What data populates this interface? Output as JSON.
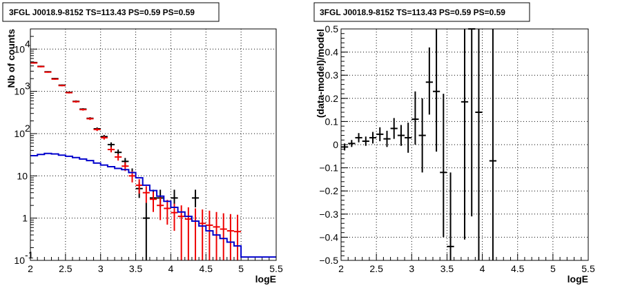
{
  "colors": {
    "black": "#000000",
    "red": "#ee0000",
    "blue": "#0000cc"
  },
  "chart_data": [
    {
      "type": "scatter",
      "title": "3FGL J0018.9-8152 TS=113.43 PS=0.59 PS=0.59",
      "xlabel": "logE",
      "ylabel": "Nb of counts",
      "xlim": [
        2,
        5.5
      ],
      "ylim": [
        0.1,
        30000
      ],
      "yscale": "log",
      "grid": true,
      "xticks": [
        "2",
        "2.5",
        "3",
        "3.5",
        "4",
        "4.5",
        "5",
        "5.5"
      ],
      "yticks": [
        {
          "value": 0.1,
          "label": "10",
          "exp": "-1"
        },
        {
          "value": 1,
          "label": "1",
          "exp": ""
        },
        {
          "value": 10,
          "label": "10",
          "exp": ""
        },
        {
          "value": 100,
          "label": "10",
          "exp": "2"
        },
        {
          "value": 1000,
          "label": "10",
          "exp": "3"
        },
        {
          "value": 10000,
          "label": "10",
          "exp": "4"
        }
      ],
      "series": [
        {
          "color": "black",
          "style": "errorbar",
          "x": [
            2.05,
            2.15,
            2.25,
            2.35,
            2.45,
            2.55,
            2.65,
            2.75,
            2.85,
            2.95,
            3.05,
            3.15,
            3.25,
            3.35,
            3.45,
            3.55,
            3.65,
            3.75,
            3.85,
            4.05,
            4.35
          ],
          "y": [
            4800,
            3900,
            2900,
            2000,
            1400,
            950,
            580,
            380,
            230,
            130,
            85,
            55,
            36,
            22,
            12,
            5,
            1,
            3,
            3,
            3,
            3
          ],
          "ylow": [
            4600,
            3750,
            2800,
            1930,
            1350,
            910,
            550,
            360,
            215,
            120,
            77,
            48,
            30,
            17.5,
            9,
            3,
            0.1,
            1.8,
            1.8,
            1.8,
            1.8
          ],
          "yhigh": [
            5000,
            4050,
            3000,
            2070,
            1450,
            990,
            610,
            400,
            245,
            140,
            93,
            62,
            42,
            26.5,
            15,
            7,
            2.3,
            4.7,
            4.7,
            4.7,
            4.7
          ]
        },
        {
          "color": "red",
          "style": "errorbar",
          "x": [
            2.05,
            2.15,
            2.25,
            2.35,
            2.45,
            2.55,
            2.65,
            2.75,
            2.85,
            2.95,
            3.05,
            3.15,
            3.25,
            3.35,
            3.45,
            3.55,
            3.65,
            3.75,
            3.85,
            3.95,
            4.05,
            4.15,
            4.25,
            4.35,
            4.45,
            4.55,
            4.65,
            4.75,
            4.85,
            4.95
          ],
          "y": [
            4700,
            3850,
            2850,
            1950,
            1370,
            930,
            570,
            370,
            225,
            125,
            80,
            42,
            28,
            17,
            10,
            6,
            4,
            2.8,
            2,
            1.7,
            1.35,
            1.1,
            0.95,
            0.85,
            0.75,
            0.68,
            0.62,
            0.55,
            0.5,
            0.48
          ],
          "ylow": [
            4550,
            3700,
            2750,
            1880,
            1320,
            890,
            540,
            350,
            210,
            115,
            72,
            36,
            23,
            13,
            7,
            3.8,
            2.3,
            1.4,
            0.9,
            0.7,
            0.5,
            0.1,
            0.1,
            0.1,
            0.1,
            0.1,
            0.1,
            0.1,
            0.1,
            0.1
          ],
          "yhigh": [
            4850,
            4000,
            2950,
            2020,
            1420,
            970,
            600,
            390,
            240,
            135,
            88,
            48,
            33,
            21,
            13,
            8.3,
            5.7,
            4.2,
            3.1,
            2.7,
            2.2,
            2,
            1.8,
            1.7,
            1.6,
            1.5,
            1.4,
            1.3,
            1.25,
            1.2
          ]
        },
        {
          "color": "blue",
          "style": "step",
          "edges": [
            2.0,
            2.1,
            2.2,
            2.3,
            2.4,
            2.5,
            2.6,
            2.7,
            2.8,
            2.9,
            3.0,
            3.1,
            3.2,
            3.3,
            3.4,
            3.5,
            3.6,
            3.7,
            3.8,
            3.9,
            4.0,
            4.1,
            4.2,
            4.3,
            4.4,
            4.5,
            4.6,
            4.7,
            4.8,
            4.9,
            5.0,
            5.5
          ],
          "values": [
            30,
            32,
            34,
            33,
            31,
            29,
            27,
            25,
            23,
            20,
            18,
            16.5,
            15,
            14,
            12,
            9,
            6,
            4.5,
            3.3,
            2.5,
            1.8,
            1.4,
            1.1,
            0.85,
            0.65,
            0.5,
            0.4,
            0.33,
            0.27,
            0.22,
            0.12
          ]
        }
      ]
    },
    {
      "type": "scatter",
      "title": "3FGL J0018.9-8152 TS=113.43 PS=0.59 PS=0.59",
      "xlabel": "logE",
      "ylabel": "(data-model)/model",
      "xlim": [
        2,
        5.5
      ],
      "ylim": [
        -0.5,
        0.5
      ],
      "grid": true,
      "xticks": [
        "2",
        "2.5",
        "3",
        "3.5",
        "4",
        "4.5",
        "5",
        "5.5"
      ],
      "yticks": [
        "0.5",
        "0.4",
        "0.3",
        "0.2",
        "0.1",
        "0",
        "−0.1",
        "−0.2",
        "−0.3",
        "−0.4",
        "−0.5"
      ],
      "series": [
        {
          "color": "black",
          "style": "errorbar",
          "x": [
            2.05,
            2.15,
            2.25,
            2.35,
            2.45,
            2.55,
            2.65,
            2.75,
            2.85,
            2.95,
            3.05,
            3.15,
            3.25,
            3.35,
            3.45,
            3.55,
            3.75,
            3.85,
            3.95,
            4.15
          ],
          "y": [
            -0.01,
            0.005,
            0.03,
            0.015,
            0.03,
            0.045,
            0.025,
            0.07,
            0.04,
            0.03,
            0.11,
            0.04,
            0.27,
            0.23,
            -0.12,
            -0.44,
            0.185,
            0.5,
            0.14,
            -0.07
          ],
          "ylow": [
            -0.025,
            -0.01,
            0.01,
            -0.005,
            0.005,
            0.015,
            -0.01,
            0.025,
            -0.005,
            -0.035,
            0.0,
            -0.12,
            0.13,
            -0.03,
            -0.4,
            -0.5,
            -0.41,
            -0.31,
            -0.5,
            -0.5
          ],
          "yhigh": [
            0.005,
            0.02,
            0.05,
            0.035,
            0.055,
            0.075,
            0.06,
            0.115,
            0.085,
            0.095,
            0.23,
            0.2,
            0.42,
            0.5,
            0.22,
            -0.12,
            0.5,
            0.5,
            0.5,
            0.5
          ]
        }
      ]
    }
  ]
}
